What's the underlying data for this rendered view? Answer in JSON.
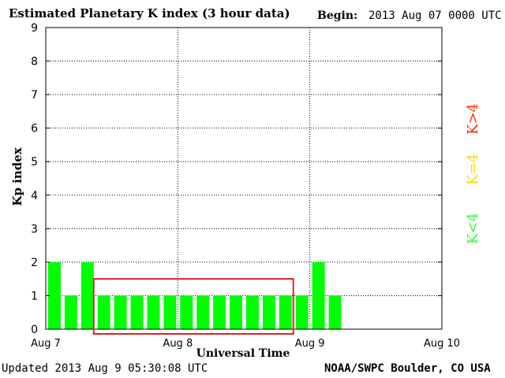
{
  "header": {
    "title": "Estimated Planetary K index (3 hour data)",
    "begin_label": "Begin:",
    "begin_value": "2013 Aug 07 0000 UTC"
  },
  "footer": {
    "updated": "Updated 2013 Aug  9 05:30:08 UTC",
    "source": "NOAA/SWPC Boulder, CO USA"
  },
  "legend": [
    {
      "label": "K>4",
      "color": "#ff3300"
    },
    {
      "label": "K=4",
      "color": "#ffd700"
    },
    {
      "label": "K<4",
      "color": "#33ff33"
    }
  ],
  "colors": {
    "bar": "#00ff00",
    "highlight_box": "#dd2222",
    "grid": "#000000"
  },
  "chart_data": {
    "type": "bar",
    "ylabel": "Kp index",
    "xlabel": "Universal Time",
    "ylim": [
      0,
      9
    ],
    "yticks": [
      "0",
      "1",
      "2",
      "3",
      "4",
      "5",
      "6",
      "7",
      "8",
      "9"
    ],
    "x_tick_labels": [
      "Aug 7",
      "Aug 8",
      "Aug 9",
      "Aug 10"
    ],
    "slots_total": 24,
    "grid": "dotted",
    "values": [
      2,
      1,
      2,
      1,
      1,
      1,
      1,
      1,
      1,
      1,
      1,
      1,
      1,
      1,
      1,
      1,
      2,
      1
    ],
    "highlight_range": [
      3,
      15
    ]
  }
}
